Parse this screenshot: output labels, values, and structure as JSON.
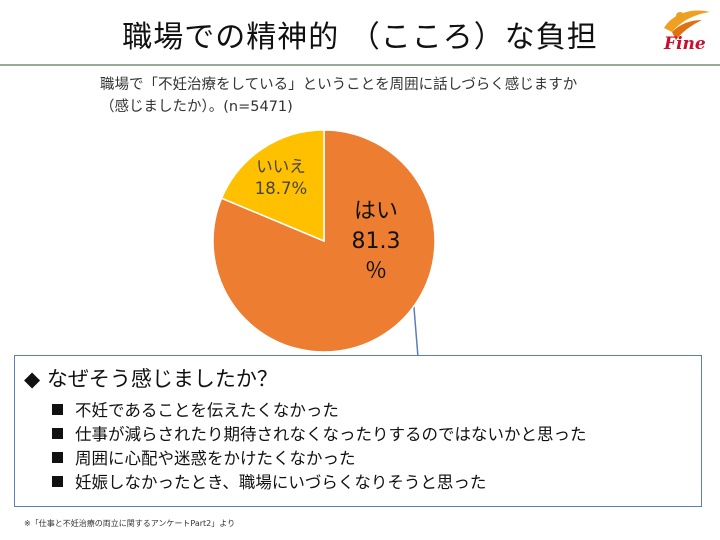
{
  "header": {
    "title": "職場での精神的 （こころ）な負担",
    "logo_text": "Fine"
  },
  "chart_data": {
    "type": "pie",
    "title": "職場で「不妊治療をしている」ということを周囲に話しづらく感じますか（感じましたか）。(n=5471)",
    "slices": [
      {
        "label": "はい",
        "value": 81.3,
        "value_text": "81.3％",
        "color": "#ed7d31"
      },
      {
        "label": "いいえ",
        "value": 18.7,
        "value_text": "18.7%",
        "color": "#ffc000"
      }
    ],
    "start": "12 o'clock",
    "direction": "clockwise"
  },
  "callout": {
    "heading": "◆ なぜそう感じましたか？",
    "reasons": [
      "不妊であることを伝えたくなかった",
      "仕事が減らされたり期待されなくなったりするのではないかと思った",
      "周囲に心配や迷惑をかけたくなかった",
      "妊娠しなかったとき、職場にいづらくなりそうと思った"
    ]
  },
  "footnote": "※「仕事と不妊治療の両立に関するアンケートPart2」より"
}
